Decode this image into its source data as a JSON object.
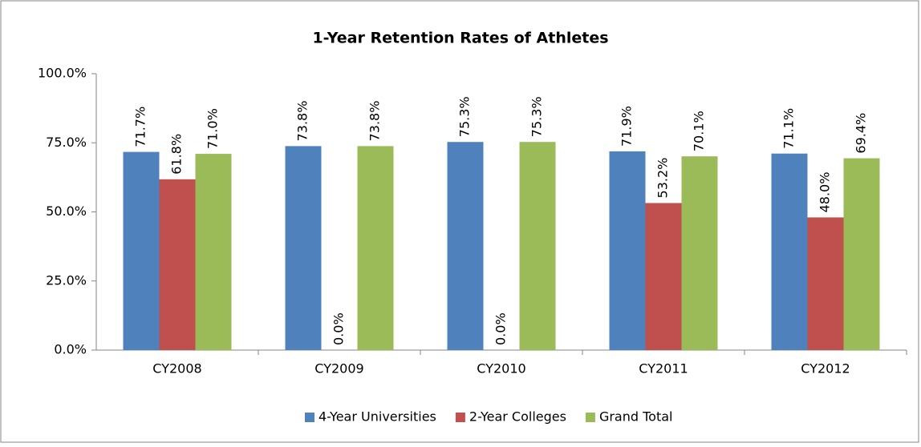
{
  "chart_data": {
    "type": "bar",
    "title": "1-Year Retention Rates of Athletes",
    "categories": [
      "CY2008",
      "CY2009",
      "CY2010",
      "CY2011",
      "CY2012"
    ],
    "series": [
      {
        "name": "4-Year Universities",
        "color": "#4f81bd",
        "values": [
          71.7,
          73.8,
          75.3,
          71.9,
          71.1
        ],
        "value_labels": [
          "71.7%",
          "73.8%",
          "75.3%",
          "71.9%",
          "71.1%"
        ]
      },
      {
        "name": "2-Year Colleges",
        "color": "#c0504d",
        "values": [
          61.8,
          0,
          0,
          53.2,
          48.0
        ],
        "value_labels": [
          "61.8%",
          "0.0%",
          "0.0%",
          "53.2%",
          "48.0%"
        ]
      },
      {
        "name": "Grand Total",
        "color": "#9bbb59",
        "values": [
          71.0,
          73.8,
          75.3,
          70.1,
          69.4
        ],
        "value_labels": [
          "71.0%",
          "73.8%",
          "75.3%",
          "70.1%",
          "69.4%"
        ]
      }
    ],
    "ylim": [
      0,
      100
    ],
    "yticks": [
      {
        "value": 0,
        "label": "0.0%"
      },
      {
        "value": 25,
        "label": "25.0%"
      },
      {
        "value": 50,
        "label": "50.0%"
      },
      {
        "value": 75,
        "label": "75.0%"
      },
      {
        "value": 100,
        "label": "100.0%"
      }
    ],
    "grid": false,
    "legend": "bottom"
  }
}
